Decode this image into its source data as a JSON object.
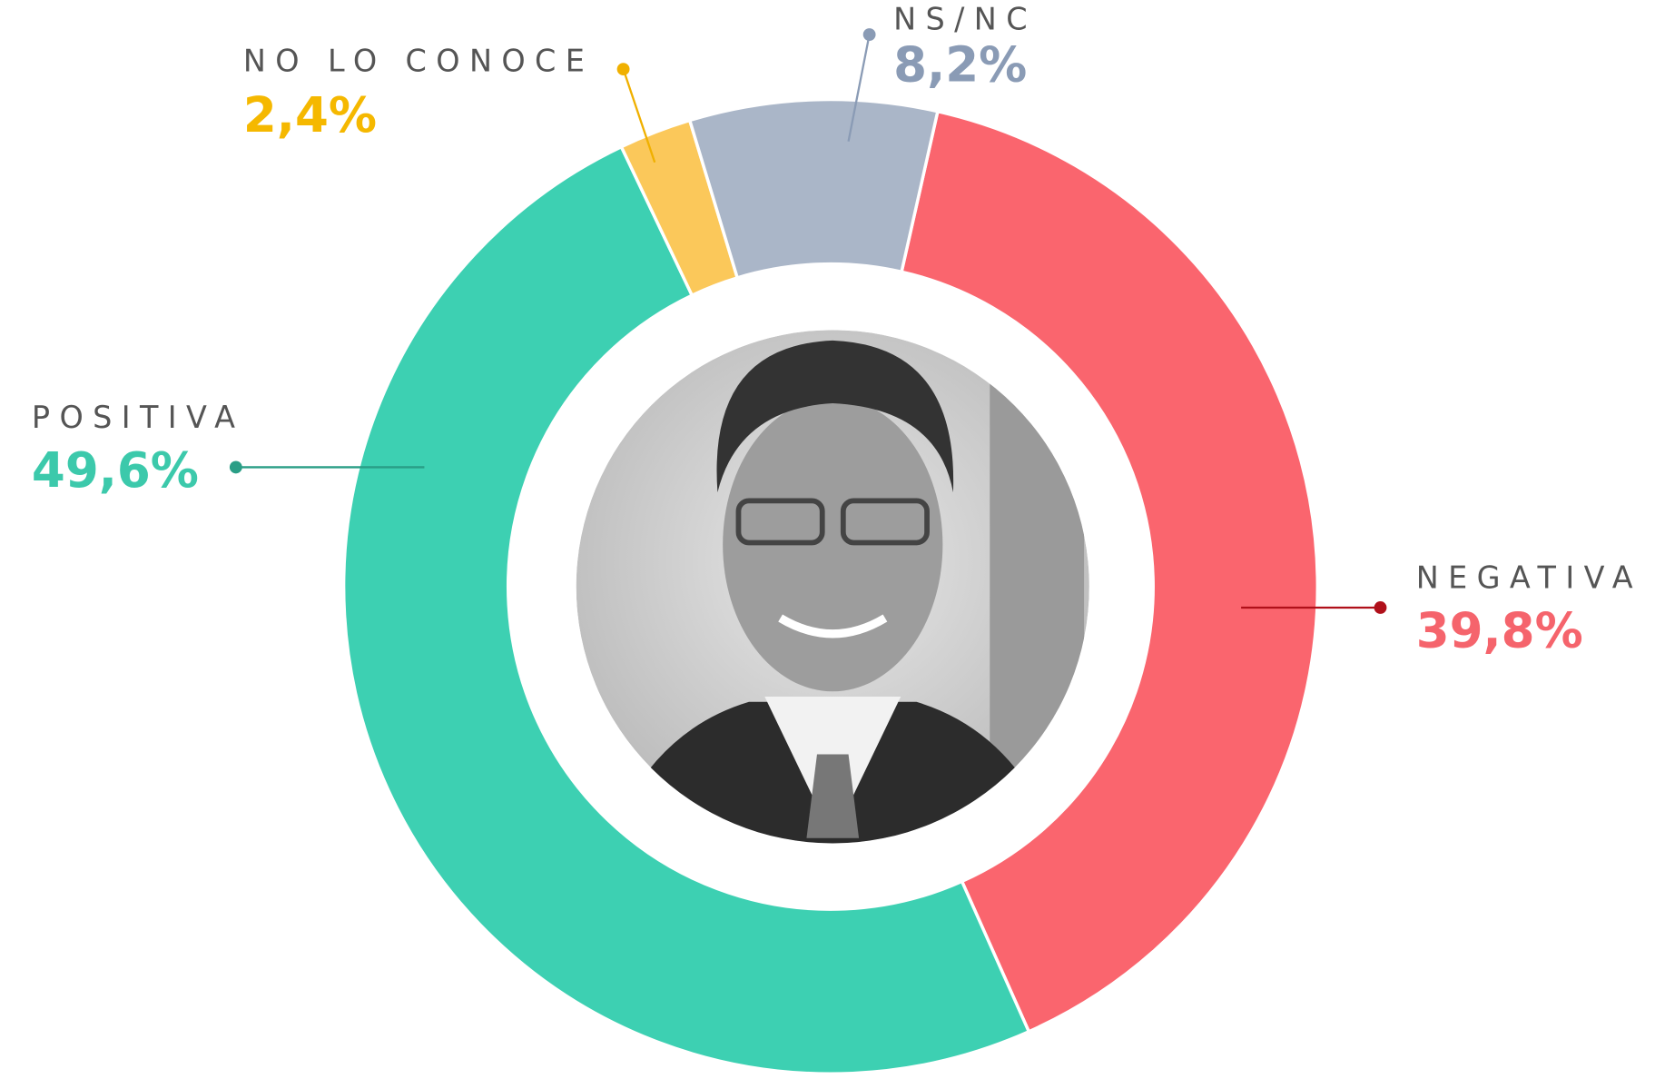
{
  "chart_data": {
    "type": "donut",
    "categories": [
      "NEGATIVA",
      "POSITIVA",
      "NO LO CONOCE",
      "NS/NC"
    ],
    "values": [
      39.8,
      49.6,
      2.4,
      8.2
    ],
    "value_labels": [
      "39,8%",
      "49,6%",
      "2,4%",
      "8,2%"
    ],
    "colors": [
      "#fa656e",
      "#3dd0b2",
      "#fbc85a",
      "#aab6c8"
    ],
    "label_colors": [
      "#f5646c",
      "#3cc9ab",
      "#f5b800",
      "#8a9bb5"
    ]
  }
}
